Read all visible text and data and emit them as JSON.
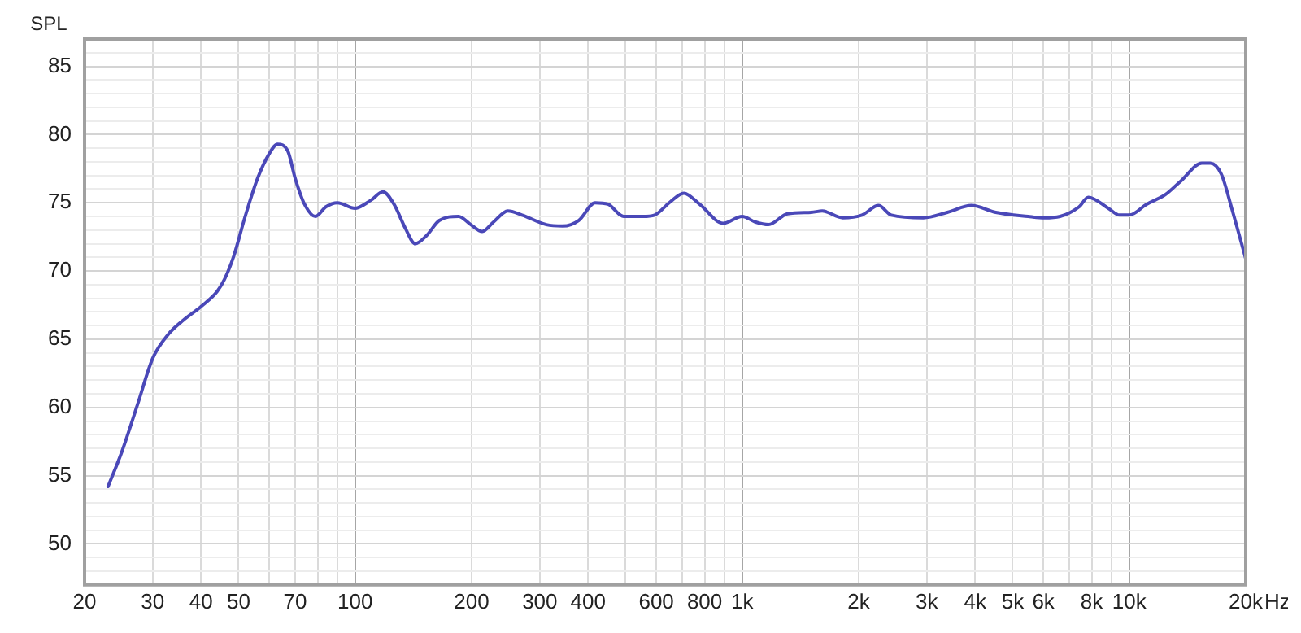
{
  "chart_data": {
    "type": "line",
    "ylabel": "SPL",
    "xlabel": "Hz",
    "log": "x",
    "grid": true,
    "marker": "none",
    "line_style": "solid",
    "legend": false,
    "xlim": [
      20,
      20000
    ],
    "ylim": [
      47,
      87
    ],
    "xticks": [
      20,
      30,
      40,
      50,
      {
        "value": 60,
        "label": null
      },
      70,
      {
        "value": 80,
        "label": null
      },
      {
        "value": 90,
        "label": null
      },
      100,
      200,
      300,
      400,
      {
        "value": 500,
        "label": null
      },
      600,
      {
        "value": 700,
        "label": null
      },
      800,
      {
        "value": 900,
        "label": null
      },
      {
        "value": 1000,
        "label": "1k"
      },
      {
        "value": 2000,
        "label": "2k"
      },
      {
        "value": 3000,
        "label": "3k"
      },
      {
        "value": 4000,
        "label": "4k"
      },
      {
        "value": 5000,
        "label": "5k"
      },
      {
        "value": 6000,
        "label": "6k"
      },
      {
        "value": 7000,
        "label": null
      },
      {
        "value": 8000,
        "label": "8k"
      },
      {
        "value": 9000,
        "label": null
      },
      {
        "value": 10000,
        "label": "10k"
      },
      {
        "value": 20000,
        "label": "20k"
      }
    ],
    "yticks": [
      {
        "value": 47,
        "label": null
      },
      {
        "value": 48,
        "label": null
      },
      {
        "value": 49,
        "label": null
      },
      50,
      {
        "value": 51,
        "label": null
      },
      {
        "value": 52,
        "label": null
      },
      {
        "value": 53,
        "label": null
      },
      {
        "value": 54,
        "label": null
      },
      55,
      {
        "value": 56,
        "label": null
      },
      {
        "value": 57,
        "label": null
      },
      {
        "value": 58,
        "label": null
      },
      {
        "value": 59,
        "label": null
      },
      60,
      {
        "value": 61,
        "label": null
      },
      {
        "value": 62,
        "label": null
      },
      {
        "value": 63,
        "label": null
      },
      {
        "value": 64,
        "label": null
      },
      65,
      {
        "value": 66,
        "label": null
      },
      {
        "value": 67,
        "label": null
      },
      {
        "value": 68,
        "label": null
      },
      {
        "value": 69,
        "label": null
      },
      70,
      {
        "value": 71,
        "label": null
      },
      {
        "value": 72,
        "label": null
      },
      {
        "value": 73,
        "label": null
      },
      {
        "value": 74,
        "label": null
      },
      75,
      {
        "value": 76,
        "label": null
      },
      {
        "value": 77,
        "label": null
      },
      {
        "value": 78,
        "label": null
      },
      {
        "value": 79,
        "label": null
      },
      80,
      {
        "value": 81,
        "label": null
      },
      {
        "value": 82,
        "label": null
      },
      {
        "value": 83,
        "label": null
      },
      {
        "value": 84,
        "label": null
      },
      85,
      {
        "value": 86,
        "label": null
      },
      {
        "value": 87,
        "label": null
      }
    ],
    "series": [
      {
        "color": "#4a48b8",
        "x": [
          23,
          25,
          27.4,
          30,
          33,
          36,
          40,
          44,
          46,
          48.6,
          52,
          56,
          60,
          63,
          67,
          70,
          74,
          79,
          84,
          90,
          100,
          110,
          118,
          126,
          135,
          143,
          153,
          165,
          185,
          199,
          213,
          228,
          248,
          270,
          312,
          344,
          378,
          417,
          450,
          494,
          554,
          594,
          648,
          707,
          776,
          893,
          1000,
          1080,
          1170,
          1310,
          1510,
          1610,
          1820,
          2040,
          2250,
          2430,
          2940,
          3390,
          3910,
          4520,
          5480,
          6030,
          6630,
          7420,
          7840,
          8830,
          9440,
          10000,
          11100,
          12400,
          13600,
          15400,
          16200,
          17300,
          18400,
          20000
        ],
        "values": [
          54.2,
          56.8,
          60.2,
          63.6,
          65.4,
          66.4,
          67.4,
          68.5,
          69.4,
          71.1,
          74.0,
          76.8,
          78.6,
          79.3,
          78.8,
          76.8,
          74.9,
          74.0,
          74.7,
          75.0,
          74.6,
          75.2,
          75.8,
          74.9,
          73.1,
          72.0,
          72.6,
          73.7,
          74.0,
          73.4,
          72.9,
          73.6,
          74.4,
          74.1,
          73.4,
          73.3,
          73.7,
          75.0,
          74.9,
          74.0,
          74.0,
          74.1,
          75.0,
          75.7,
          74.9,
          73.5,
          74.0,
          73.6,
          73.4,
          74.2,
          74.3,
          74.4,
          73.9,
          74.1,
          74.8,
          74.1,
          73.9,
          74.3,
          74.8,
          74.3,
          74.0,
          73.9,
          74.0,
          74.7,
          75.4,
          74.6,
          74.1,
          74.1,
          74.9,
          75.6,
          76.6,
          77.9,
          77.9,
          77.1,
          74.6,
          70.9
        ]
      }
    ]
  }
}
